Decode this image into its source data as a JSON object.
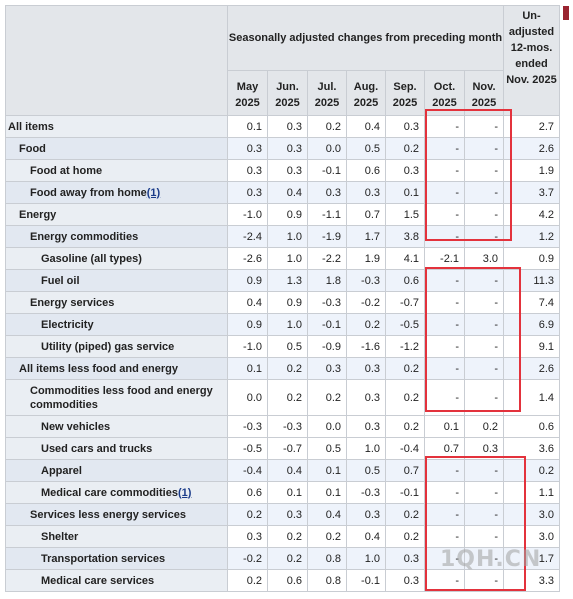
{
  "header": {
    "group_title": "Seasonally adjusted changes from preceding month",
    "unadjusted_title": "Un-adjusted 12-mos. ended Nov. 2025",
    "months": [
      {
        "mon": "May",
        "year": "2025"
      },
      {
        "mon": "Jun.",
        "year": "2025"
      },
      {
        "mon": "Jul.",
        "year": "2025"
      },
      {
        "mon": "Aug.",
        "year": "2025"
      },
      {
        "mon": "Sep.",
        "year": "2025"
      },
      {
        "mon": "Oct.",
        "year": "2025"
      },
      {
        "mon": "Nov.",
        "year": "2025"
      }
    ]
  },
  "rows": [
    {
      "label": "All items",
      "indent": 0,
      "values": [
        "0.1",
        "0.3",
        "0.2",
        "0.4",
        "0.3",
        "-",
        "-",
        "2.7"
      ]
    },
    {
      "label": "Food",
      "indent": 1,
      "values": [
        "0.3",
        "0.3",
        "0.0",
        "0.5",
        "0.2",
        "-",
        "-",
        "2.6"
      ]
    },
    {
      "label": "Food at home",
      "indent": 2,
      "values": [
        "0.3",
        "0.3",
        "-0.1",
        "0.6",
        "0.3",
        "-",
        "-",
        "1.9"
      ]
    },
    {
      "label": "Food away from home",
      "footnote": "(1)",
      "indent": 2,
      "values": [
        "0.3",
        "0.4",
        "0.3",
        "0.3",
        "0.1",
        "-",
        "-",
        "3.7"
      ]
    },
    {
      "label": "Energy",
      "indent": 1,
      "values": [
        "-1.0",
        "0.9",
        "-1.1",
        "0.7",
        "1.5",
        "-",
        "-",
        "4.2"
      ]
    },
    {
      "label": "Energy commodities",
      "indent": 2,
      "values": [
        "-2.4",
        "1.0",
        "-1.9",
        "1.7",
        "3.8",
        "-",
        "-",
        "1.2"
      ]
    },
    {
      "label": "Gasoline (all types)",
      "indent": 3,
      "values": [
        "-2.6",
        "1.0",
        "-2.2",
        "1.9",
        "4.1",
        "-2.1",
        "3.0",
        "0.9"
      ]
    },
    {
      "label": "Fuel oil",
      "indent": 3,
      "values": [
        "0.9",
        "1.3",
        "1.8",
        "-0.3",
        "0.6",
        "-",
        "-",
        "11.3"
      ]
    },
    {
      "label": "Energy services",
      "indent": 2,
      "values": [
        "0.4",
        "0.9",
        "-0.3",
        "-0.2",
        "-0.7",
        "-",
        "-",
        "7.4"
      ]
    },
    {
      "label": "Electricity",
      "indent": 3,
      "values": [
        "0.9",
        "1.0",
        "-0.1",
        "0.2",
        "-0.5",
        "-",
        "-",
        "6.9"
      ]
    },
    {
      "label": "Utility (piped) gas service",
      "indent": 3,
      "values": [
        "-1.0",
        "0.5",
        "-0.9",
        "-1.6",
        "-1.2",
        "-",
        "-",
        "9.1"
      ]
    },
    {
      "label": "All items less food and energy",
      "indent": 1,
      "values": [
        "0.1",
        "0.2",
        "0.3",
        "0.3",
        "0.2",
        "-",
        "-",
        "2.6"
      ]
    },
    {
      "label": "Commodities less food and energy commodities",
      "indent": 2,
      "tall": true,
      "values": [
        "0.0",
        "0.2",
        "0.2",
        "0.3",
        "0.2",
        "-",
        "-",
        "1.4"
      ]
    },
    {
      "label": "New vehicles",
      "indent": 3,
      "values": [
        "-0.3",
        "-0.3",
        "0.0",
        "0.3",
        "0.2",
        "0.1",
        "0.2",
        "0.6"
      ]
    },
    {
      "label": "Used cars and trucks",
      "indent": 3,
      "values": [
        "-0.5",
        "-0.7",
        "0.5",
        "1.0",
        "-0.4",
        "0.7",
        "0.3",
        "3.6"
      ]
    },
    {
      "label": "Apparel",
      "indent": 3,
      "values": [
        "-0.4",
        "0.4",
        "0.1",
        "0.5",
        "0.7",
        "-",
        "-",
        "0.2"
      ]
    },
    {
      "label": "Medical care commodities",
      "footnote": "(1)",
      "indent": 3,
      "values": [
        "0.6",
        "0.1",
        "0.1",
        "-0.3",
        "-0.1",
        "-",
        "-",
        "1.1"
      ]
    },
    {
      "label": "Services less energy services",
      "indent": 2,
      "values": [
        "0.2",
        "0.3",
        "0.4",
        "0.3",
        "0.2",
        "-",
        "-",
        "3.0"
      ]
    },
    {
      "label": "Shelter",
      "indent": 3,
      "values": [
        "0.3",
        "0.2",
        "0.2",
        "0.4",
        "0.2",
        "-",
        "-",
        "3.0"
      ]
    },
    {
      "label": "Transportation services",
      "indent": 3,
      "values": [
        "-0.2",
        "0.2",
        "0.8",
        "1.0",
        "0.3",
        "-",
        "-",
        "1.7"
      ]
    },
    {
      "label": "Medical care services",
      "indent": 3,
      "values": [
        "0.2",
        "0.6",
        "0.8",
        "-0.1",
        "0.3",
        "-",
        "-",
        "3.3"
      ]
    }
  ],
  "watermark": "1QH.CN",
  "colors": {
    "highlight_box": "#e3323c",
    "header_bg": "#e3e6ea",
    "band_bg": "#eef3fb",
    "accent_bar": "#9a2430"
  }
}
